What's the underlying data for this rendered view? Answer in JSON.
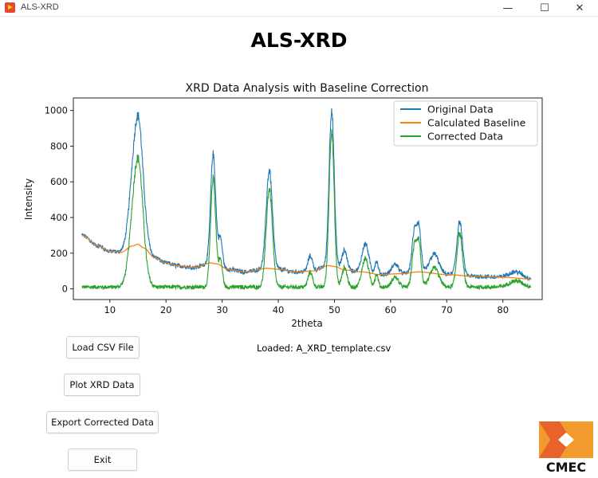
{
  "window": {
    "title": "ALS-XRD",
    "minimize_glyph": "—",
    "maximize_glyph": "☐",
    "close_glyph": "✕"
  },
  "app_heading": "ALS-XRD",
  "chart_data": {
    "type": "line",
    "title": "XRD Data Analysis with Baseline Correction",
    "xlabel": "2theta",
    "ylabel": "Intensity",
    "xlim": [
      3.5,
      87
    ],
    "ylim": [
      -60,
      1070
    ],
    "xticks": [
      10,
      20,
      30,
      40,
      50,
      60,
      70,
      80
    ],
    "yticks": [
      0,
      200,
      400,
      600,
      800,
      1000
    ],
    "grid": false,
    "legend_position": "top-right",
    "x_range": [
      5,
      85
    ],
    "peaks": [
      {
        "center": 14.8,
        "height": 640,
        "width": 1.0
      },
      {
        "center": 15.4,
        "height": 120,
        "width": 0.6
      },
      {
        "center": 28.4,
        "height": 610,
        "width": 0.45
      },
      {
        "center": 29.7,
        "height": 150,
        "width": 0.35
      },
      {
        "center": 38.4,
        "height": 550,
        "width": 0.55
      },
      {
        "center": 45.7,
        "height": 85,
        "width": 0.4
      },
      {
        "center": 49.5,
        "height": 880,
        "width": 0.45
      },
      {
        "center": 51.8,
        "height": 110,
        "width": 0.45
      },
      {
        "center": 55.5,
        "height": 160,
        "width": 0.6
      },
      {
        "center": 57.5,
        "height": 70,
        "width": 0.3
      },
      {
        "center": 60.8,
        "height": 55,
        "width": 0.6
      },
      {
        "center": 64.3,
        "height": 240,
        "width": 0.45
      },
      {
        "center": 65.1,
        "height": 210,
        "width": 0.35
      },
      {
        "center": 67.8,
        "height": 110,
        "width": 0.8
      },
      {
        "center": 72.3,
        "height": 300,
        "width": 0.5
      },
      {
        "center": 82.3,
        "height": 35,
        "width": 1.2
      }
    ],
    "baseline": {
      "x": [
        5,
        8,
        10,
        12,
        14,
        15,
        16,
        18,
        20,
        22,
        25,
        28,
        29,
        31,
        34,
        38,
        40,
        43,
        46,
        49,
        50,
        52,
        55,
        58,
        62,
        65,
        70,
        75,
        80,
        85
      ],
      "y": [
        300,
        240,
        210,
        205,
        240,
        250,
        230,
        175,
        145,
        130,
        120,
        145,
        140,
        110,
        95,
        115,
        110,
        95,
        100,
        130,
        125,
        105,
        95,
        80,
        85,
        95,
        80,
        70,
        65,
        55
      ]
    },
    "noise_amplitude": 22,
    "series": [
      {
        "name": "Original Data",
        "color": "#1f77b4",
        "role": "original"
      },
      {
        "name": "Calculated Baseline",
        "color": "#ff7f0e",
        "role": "baseline"
      },
      {
        "name": "Corrected Data",
        "color": "#2ca02c",
        "role": "corrected"
      }
    ]
  },
  "buttons": {
    "load_csv": "Load CSV File",
    "plot_xrd": "Plot XRD Data",
    "export": "Export Corrected Data",
    "exit": "Exit"
  },
  "status": "Loaded: A_XRD_template.csv",
  "logo": {
    "text": "CMEC",
    "color_primary": "#f29a2e",
    "color_secondary": "#e8632c"
  }
}
